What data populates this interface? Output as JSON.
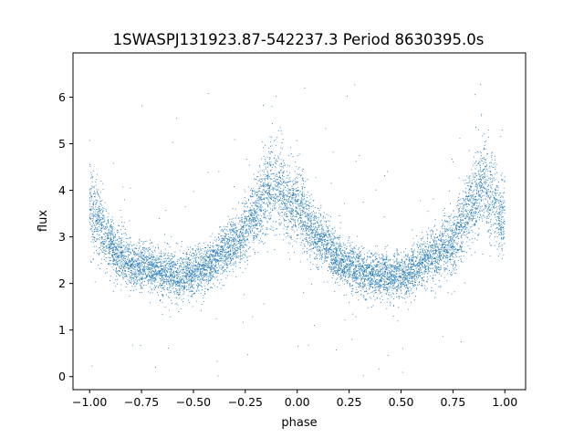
{
  "chart_data": {
    "type": "scatter",
    "title": "1SWASPJ131923.87-542237.3 Period 8630395.0s",
    "xlabel": "phase",
    "ylabel": "flux",
    "xlim": [
      -1.08,
      1.1
    ],
    "ylim": [
      -0.28,
      6.95
    ],
    "xticks": [
      -1.0,
      -0.75,
      -0.5,
      -0.25,
      0.0,
      0.25,
      0.5,
      0.75,
      1.0
    ],
    "xtick_labels": [
      "−1.00",
      "−0.75",
      "−0.50",
      "−0.25",
      "0.00",
      "0.25",
      "0.50",
      "0.75",
      "1.00"
    ],
    "yticks": [
      0,
      1,
      2,
      3,
      4,
      5,
      6
    ],
    "ytick_labels": [
      "0",
      "1",
      "2",
      "3",
      "4",
      "5",
      "6"
    ],
    "grid": false,
    "legend": "none",
    "color": "#1f77b4",
    "series": [
      {
        "marker": "dot",
        "x": [
          -1.0,
          -0.975,
          -0.95,
          -0.925,
          -0.9,
          -0.875,
          -0.85,
          -0.825,
          -0.8,
          -0.775,
          -0.75,
          -0.725,
          -0.7,
          -0.675,
          -0.65,
          -0.625,
          -0.6,
          -0.575,
          -0.55,
          -0.525,
          -0.5,
          -0.475,
          -0.45,
          -0.425,
          -0.4,
          -0.375,
          -0.35,
          -0.325,
          -0.3,
          -0.275,
          -0.25,
          -0.225,
          -0.2,
          -0.175,
          -0.15,
          -0.125,
          -0.1,
          -0.075,
          -0.05,
          -0.025,
          0.0,
          0.025,
          0.05,
          0.075,
          0.1,
          0.125,
          0.15,
          0.175,
          0.2,
          0.225,
          0.25,
          0.275,
          0.3,
          0.325,
          0.35,
          0.375,
          0.4,
          0.425,
          0.45,
          0.475,
          0.5,
          0.525,
          0.55,
          0.575,
          0.6,
          0.625,
          0.65,
          0.675,
          0.7,
          0.725,
          0.75,
          0.775,
          0.8,
          0.825,
          0.85,
          0.875,
          0.9,
          0.925,
          0.95,
          0.975,
          1.0
        ],
        "y": [
          3.7,
          3.5,
          3.3,
          3.0,
          2.9,
          2.7,
          2.6,
          2.5,
          2.4,
          2.4,
          2.3,
          2.4,
          2.3,
          2.3,
          2.2,
          2.3,
          2.2,
          2.1,
          2.1,
          2.2,
          2.2,
          2.3,
          2.3,
          2.4,
          2.5,
          2.6,
          2.7,
          2.8,
          2.9,
          3.0,
          3.1,
          3.4,
          3.5,
          3.7,
          3.9,
          4.1,
          4.2,
          4.0,
          3.8,
          3.6,
          3.7,
          3.6,
          3.3,
          3.1,
          3.0,
          2.9,
          2.8,
          2.6,
          2.5,
          2.4,
          2.4,
          2.3,
          2.3,
          2.2,
          2.2,
          2.2,
          2.2,
          2.2,
          2.1,
          2.2,
          2.2,
          2.2,
          2.3,
          2.3,
          2.4,
          2.5,
          2.6,
          2.6,
          2.8,
          2.8,
          2.9,
          3.1,
          3.4,
          3.6,
          3.8,
          4.0,
          4.2,
          3.9,
          3.8,
          3.5,
          3.4
        ],
        "spread": [
          0.8,
          0.75,
          0.7,
          0.6,
          0.55,
          0.5,
          0.5,
          0.5,
          0.45,
          0.45,
          0.45,
          0.45,
          0.45,
          0.45,
          0.45,
          0.45,
          0.45,
          0.45,
          0.45,
          0.45,
          0.45,
          0.45,
          0.45,
          0.45,
          0.45,
          0.45,
          0.5,
          0.5,
          0.5,
          0.55,
          0.6,
          0.65,
          0.7,
          0.75,
          0.8,
          0.85,
          0.85,
          0.8,
          0.75,
          0.7,
          0.75,
          0.75,
          0.7,
          0.6,
          0.55,
          0.5,
          0.5,
          0.5,
          0.45,
          0.45,
          0.45,
          0.45,
          0.45,
          0.45,
          0.45,
          0.45,
          0.45,
          0.45,
          0.45,
          0.45,
          0.45,
          0.45,
          0.45,
          0.45,
          0.45,
          0.45,
          0.5,
          0.5,
          0.5,
          0.55,
          0.6,
          0.65,
          0.7,
          0.75,
          0.8,
          0.85,
          0.85,
          0.8,
          0.75,
          0.7,
          0.7
        ]
      }
    ]
  }
}
